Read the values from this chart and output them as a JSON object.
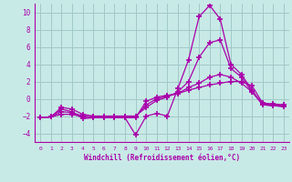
{
  "bg_color": "#c8eae6",
  "grid_color": "#a0c8c8",
  "line_color": "#aa00aa",
  "marker": "+",
  "markersize": 4,
  "markeredgewidth": 1.2,
  "linewidth": 0.9,
  "xlim": [
    -0.5,
    23.5
  ],
  "ylim": [
    -5,
    11
  ],
  "xlabel": "Windchill (Refroidissement éolien,°C)",
  "yticks": [
    -4,
    -2,
    0,
    2,
    4,
    6,
    8,
    10
  ],
  "xticks": [
    0,
    1,
    2,
    3,
    4,
    5,
    6,
    7,
    8,
    9,
    10,
    11,
    12,
    13,
    14,
    15,
    16,
    17,
    18,
    19,
    20,
    21,
    22,
    23
  ],
  "line1_x": [
    0,
    1,
    2,
    3,
    4,
    5,
    6,
    7,
    8,
    9,
    10,
    11,
    12,
    13,
    14,
    15,
    16,
    17,
    18,
    19,
    20,
    21,
    22,
    23
  ],
  "line1_y": [
    -2.2,
    -2.1,
    -1.2,
    -1.5,
    -2.3,
    -2.2,
    -2.2,
    -2.2,
    -2.2,
    -4.2,
    -2.0,
    -1.7,
    -2.0,
    1.2,
    4.5,
    9.5,
    10.8,
    9.2,
    4.0,
    2.8,
    1.0,
    -0.7,
    -0.8,
    -0.9
  ],
  "line2_x": [
    0,
    1,
    2,
    3,
    4,
    5,
    6,
    7,
    8,
    9,
    10,
    11,
    12,
    13,
    14,
    15,
    16,
    17,
    18,
    19,
    20,
    21,
    22,
    23
  ],
  "line2_y": [
    -2.2,
    -2.1,
    -1.0,
    -1.2,
    -1.8,
    -2.0,
    -2.0,
    -2.0,
    -2.0,
    -2.0,
    -1.0,
    -0.2,
    0.2,
    0.8,
    2.0,
    4.8,
    6.5,
    6.8,
    3.5,
    2.5,
    0.8,
    -0.7,
    -0.8,
    -0.9
  ],
  "line3_x": [
    0,
    1,
    2,
    3,
    4,
    5,
    6,
    7,
    8,
    9,
    10,
    11,
    12,
    13,
    14,
    15,
    16,
    17,
    18,
    19,
    20,
    21,
    22,
    23
  ],
  "line3_y": [
    -2.2,
    -2.1,
    -1.5,
    -1.6,
    -2.0,
    -2.1,
    -2.1,
    -2.1,
    -2.1,
    -2.1,
    -0.7,
    0.0,
    0.3,
    0.6,
    1.3,
    1.8,
    2.5,
    2.8,
    2.5,
    1.8,
    0.8,
    -0.6,
    -0.7,
    -0.8
  ],
  "line4_x": [
    0,
    1,
    2,
    3,
    4,
    5,
    6,
    7,
    8,
    9,
    10,
    11,
    12,
    13,
    14,
    15,
    16,
    17,
    18,
    19,
    20,
    21,
    22,
    23
  ],
  "line4_y": [
    -2.2,
    -2.1,
    -1.8,
    -1.8,
    -2.1,
    -2.2,
    -2.2,
    -2.2,
    -2.2,
    -2.2,
    -0.3,
    0.2,
    0.4,
    0.6,
    1.0,
    1.3,
    1.6,
    1.8,
    2.0,
    2.0,
    1.5,
    -0.5,
    -0.6,
    -0.7
  ]
}
